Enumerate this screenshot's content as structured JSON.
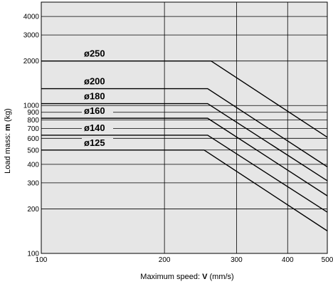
{
  "chart_data": {
    "type": "line",
    "xscale": "log",
    "yscale": "log",
    "xlim": [
      100,
      500
    ],
    "ylim": [
      100,
      5000
    ],
    "grid": true,
    "background": "#e6e6e6",
    "xlabel": {
      "prefix": "Maximum speed: ",
      "symbol": "V",
      "unit": " (mm/s)"
    },
    "ylabel": {
      "prefix": "Load mass: ",
      "symbol": "m",
      "unit": " (kg)"
    },
    "xticks": [
      {
        "value": 100,
        "label": "100"
      },
      {
        "value": 200,
        "label": "200"
      },
      {
        "value": 300,
        "label": "300"
      },
      {
        "value": 400,
        "label": "400"
      },
      {
        "value": 500,
        "label": "500"
      }
    ],
    "yticks": [
      {
        "value": 100,
        "label": "100"
      },
      {
        "value": 200,
        "label": "200"
      },
      {
        "value": 300,
        "label": "300"
      },
      {
        "value": 400,
        "label": "400"
      },
      {
        "value": 500,
        "label": "500"
      },
      {
        "value": 600,
        "label": "600"
      },
      {
        "value": 700,
        "label": "700"
      },
      {
        "value": 800,
        "label": "800"
      },
      {
        "value": 900,
        "label": "900"
      },
      {
        "value": 1000,
        "label": "1000"
      },
      {
        "value": 2000,
        "label": "2000"
      },
      {
        "value": 3000,
        "label": "3000"
      },
      {
        "value": 4000,
        "label": "4000"
      }
    ],
    "series": [
      {
        "name": "ø250",
        "x": [
          100,
          260,
          500
        ],
        "y": [
          2000,
          2000,
          610
        ]
      },
      {
        "name": "ø200",
        "x": [
          100,
          255,
          500
        ],
        "y": [
          1300,
          1300,
          385
        ]
      },
      {
        "name": "ø180",
        "x": [
          100,
          255,
          500
        ],
        "y": [
          1030,
          1030,
          310
        ]
      },
      {
        "name": "ø160",
        "x": [
          100,
          255,
          500
        ],
        "y": [
          820,
          820,
          245
        ]
      },
      {
        "name": "ø140",
        "x": [
          100,
          255,
          500
        ],
        "y": [
          630,
          630,
          190
        ]
      },
      {
        "name": "ø125",
        "x": [
          100,
          250,
          500
        ],
        "y": [
          500,
          500,
          142
        ]
      }
    ]
  }
}
